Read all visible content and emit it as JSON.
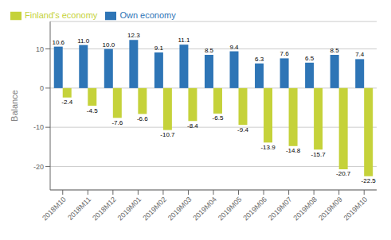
{
  "chart_data": {
    "type": "bar",
    "categories": [
      "2018M10",
      "2018M11",
      "2018M12",
      "2019M01",
      "2019M02",
      "2019M03",
      "2019M04",
      "2019M05",
      "2019M06",
      "2019M07",
      "2019M08",
      "2019M09",
      "2019M10"
    ],
    "series": [
      {
        "name": "Own economy",
        "color": "#2E75B6",
        "values": [
          10.6,
          11.0,
          10.0,
          12.3,
          9.1,
          11.1,
          8.5,
          9.4,
          6.3,
          7.6,
          6.5,
          8.5,
          7.4
        ],
        "value_labels": [
          "10.6",
          "11.0",
          "10.0",
          "12.3",
          "9.1",
          "11.1",
          "8.5",
          "9.4",
          "6.3",
          "7.6",
          "6.5",
          "8.5",
          "7.4"
        ]
      },
      {
        "name": "Finland's economy",
        "color": "#C5D23A",
        "values": [
          -2.4,
          -4.5,
          -7.6,
          -6.6,
          -10.7,
          -8.4,
          -6.5,
          -9.4,
          -13.9,
          -14.8,
          -15.7,
          -20.7,
          -22.5
        ],
        "value_labels": [
          "-2.4",
          "-4.5",
          "-7.6",
          "-6.6",
          "-10.7",
          "-8.4",
          "-6.5",
          "-9.4",
          "-13.9",
          "-14.8",
          "-15.7",
          "-20.7",
          "-22.5"
        ]
      }
    ],
    "ylabel": "Balance",
    "ylim": [
      -26,
      17
    ],
    "yticks": [
      -20,
      -10,
      0,
      10
    ],
    "grid": true,
    "legend": "upper left",
    "data_labels": true
  }
}
